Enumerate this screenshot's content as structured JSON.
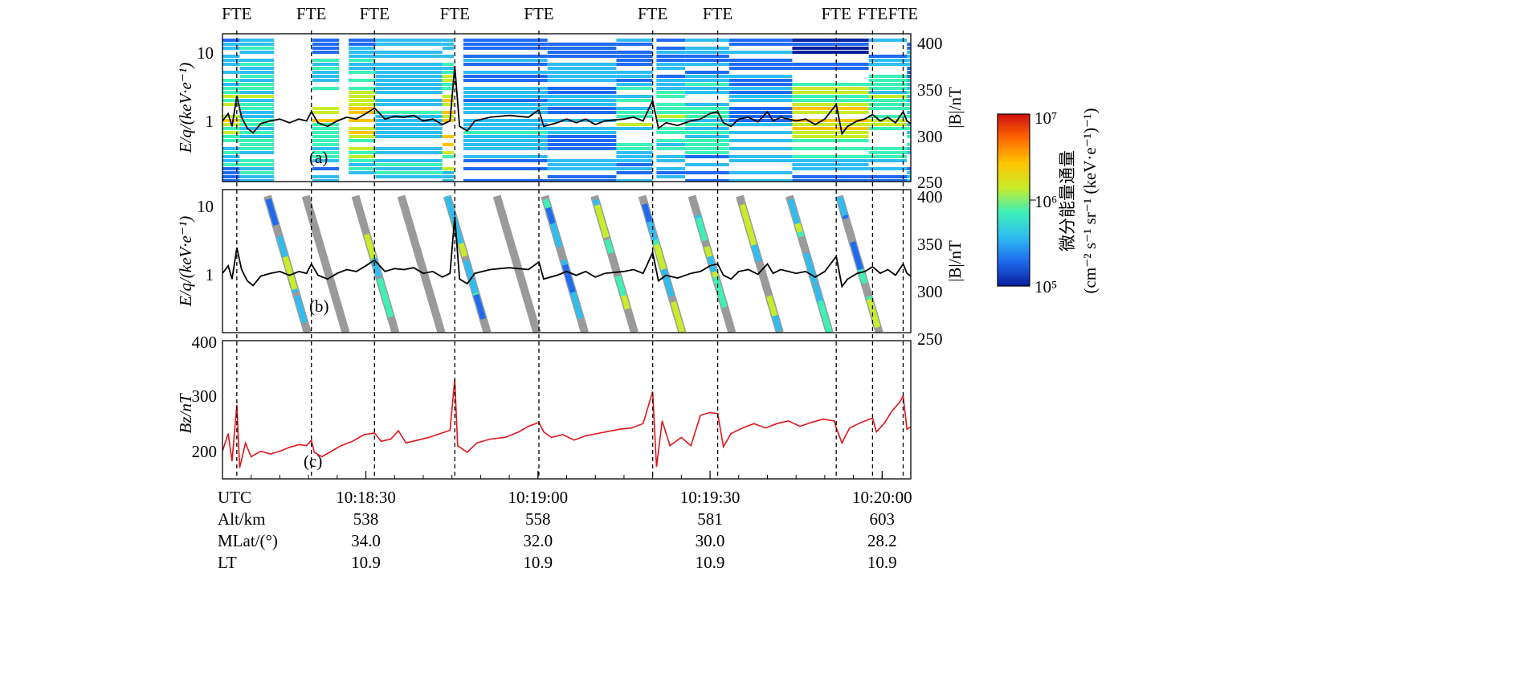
{
  "fte_label": "FTE",
  "fte_times": [
    7.5,
    46.5,
    79.5,
    121.5,
    165.5,
    225,
    259,
    321,
    340,
    356
  ],
  "time_range_s": [
    0,
    360
  ],
  "time_axis": {
    "ticks": [
      {
        "t": 75,
        "label": "10:18:30"
      },
      {
        "t": 165,
        "label": "10:19:00"
      },
      {
        "t": 255,
        "label": "10:19:30"
      },
      {
        "t": 345,
        "label": "10:20:00"
      }
    ],
    "rows": [
      {
        "name": "UTC",
        "values": [
          "10:18:30",
          "10:19:00",
          "10:19:30",
          "10:20:00"
        ]
      },
      {
        "name": "Alt/km",
        "values": [
          "538",
          "558",
          "581",
          "603"
        ]
      },
      {
        "name": "MLat/(°)",
        "values": [
          "34.0",
          "32.0",
          "30.0",
          "28.2"
        ]
      },
      {
        "name": "LT",
        "values": [
          "10.9",
          "10.9",
          "10.9",
          "10.9"
        ]
      }
    ]
  },
  "panels": {
    "a": {
      "tag": "(a)",
      "ylabel_left": "E/q/(keV·e⁻¹)",
      "ylabel_right": "|B|/nT",
      "left_ticks": [
        "10",
        "1"
      ],
      "right_ticks": [
        "400",
        "350",
        "300",
        "250"
      ]
    },
    "b": {
      "tag": "(b)",
      "ylabel_left": "E/q/(keV·e⁻¹)",
      "ylabel_right": "|B|/nT",
      "left_ticks": [
        "10",
        "1"
      ],
      "right_ticks": [
        "400",
        "350",
        "300",
        "250"
      ]
    },
    "c": {
      "tag": "(c)",
      "ylabel_left": "Bz/nT",
      "left_ticks": [
        "400",
        "300",
        "200"
      ]
    }
  },
  "colorbar": {
    "label_line1": "微分能量通量",
    "label_line2": "(cm⁻² s⁻¹ sr⁻¹ (keV·e⁻¹)⁻¹)",
    "tick_labels": [
      "10⁷",
      "10⁶",
      "10⁵"
    ],
    "colors": [
      "#0a1e9c",
      "#1f6bf0",
      "#2fbdf0",
      "#3ef0b8",
      "#c8ec2a",
      "#ffc400",
      "#ff6a00",
      "#d01010"
    ]
  },
  "colors": {
    "B_total": "#000000",
    "Bz": "#e0141b",
    "sweep_gray": "#9a9a9a"
  },
  "chart_data": {
    "type": "line",
    "x_unit": "seconds after 10:17:55 UTC",
    "xlim": [
      0,
      360
    ],
    "series": [
      {
        "name": "|B|",
        "y_range": [
          250,
          400
        ],
        "points": [
          [
            0,
            318
          ],
          [
            3,
            326
          ],
          [
            5,
            312
          ],
          [
            7.5,
            345
          ],
          [
            10,
            322
          ],
          [
            13,
            310
          ],
          [
            16,
            305
          ],
          [
            20,
            315
          ],
          [
            25,
            318
          ],
          [
            30,
            320
          ],
          [
            35,
            316
          ],
          [
            40,
            320
          ],
          [
            44,
            318
          ],
          [
            46.5,
            328
          ],
          [
            50,
            316
          ],
          [
            55,
            312
          ],
          [
            60,
            318
          ],
          [
            65,
            322
          ],
          [
            70,
            320
          ],
          [
            75,
            326
          ],
          [
            79.5,
            332
          ],
          [
            85,
            320
          ],
          [
            90,
            323
          ],
          [
            95,
            322
          ],
          [
            100,
            324
          ],
          [
            105,
            318
          ],
          [
            110,
            320
          ],
          [
            115,
            314
          ],
          [
            119,
            318
          ],
          [
            121.5,
            378
          ],
          [
            124,
            312
          ],
          [
            128,
            307
          ],
          [
            132,
            318
          ],
          [
            140,
            322
          ],
          [
            150,
            324
          ],
          [
            160,
            322
          ],
          [
            165.5,
            330
          ],
          [
            168,
            312
          ],
          [
            175,
            316
          ],
          [
            180,
            320
          ],
          [
            185,
            316
          ],
          [
            190,
            320
          ],
          [
            195,
            314
          ],
          [
            200,
            318
          ],
          [
            210,
            320
          ],
          [
            215,
            322
          ],
          [
            220,
            318
          ],
          [
            225,
            340
          ],
          [
            228,
            310
          ],
          [
            232,
            316
          ],
          [
            238,
            313
          ],
          [
            245,
            318
          ],
          [
            250,
            320
          ],
          [
            255,
            326
          ],
          [
            259,
            328
          ],
          [
            262,
            316
          ],
          [
            266,
            312
          ],
          [
            270,
            320
          ],
          [
            275,
            322
          ],
          [
            280,
            317
          ],
          [
            285,
            328
          ],
          [
            288,
            318
          ],
          [
            292,
            322
          ],
          [
            300,
            318
          ],
          [
            305,
            320
          ],
          [
            310,
            314
          ],
          [
            315,
            320
          ],
          [
            321,
            336
          ],
          [
            324,
            304
          ],
          [
            327,
            312
          ],
          [
            332,
            318
          ],
          [
            336,
            320
          ],
          [
            340,
            325
          ],
          [
            344,
            318
          ],
          [
            348,
            322
          ],
          [
            352,
            316
          ],
          [
            356,
            328
          ],
          [
            358,
            318
          ],
          [
            360,
            315
          ]
        ]
      },
      {
        "name": "Bz",
        "y_range": [
          150,
          400
        ],
        "points": [
          [
            0,
            200
          ],
          [
            3,
            232
          ],
          [
            5,
            182
          ],
          [
            7.5,
            284
          ],
          [
            9,
            170
          ],
          [
            12,
            215
          ],
          [
            15,
            190
          ],
          [
            20,
            200
          ],
          [
            25,
            195
          ],
          [
            30,
            200
          ],
          [
            35,
            207
          ],
          [
            40,
            212
          ],
          [
            44,
            210
          ],
          [
            46.5,
            220
          ],
          [
            48,
            198
          ],
          [
            52,
            190
          ],
          [
            56,
            198
          ],
          [
            62,
            210
          ],
          [
            68,
            218
          ],
          [
            74,
            230
          ],
          [
            79.5,
            233
          ],
          [
            83,
            218
          ],
          [
            88,
            222
          ],
          [
            92,
            237
          ],
          [
            96,
            215
          ],
          [
            102,
            220
          ],
          [
            108,
            225
          ],
          [
            114,
            232
          ],
          [
            119,
            238
          ],
          [
            121.5,
            330
          ],
          [
            123,
            210
          ],
          [
            128,
            198
          ],
          [
            133,
            215
          ],
          [
            140,
            222
          ],
          [
            148,
            225
          ],
          [
            155,
            235
          ],
          [
            160,
            245
          ],
          [
            165.5,
            252
          ],
          [
            168,
            235
          ],
          [
            172,
            225
          ],
          [
            178,
            230
          ],
          [
            184,
            220
          ],
          [
            190,
            228
          ],
          [
            196,
            232
          ],
          [
            202,
            236
          ],
          [
            208,
            240
          ],
          [
            214,
            242
          ],
          [
            220,
            250
          ],
          [
            225,
            308
          ],
          [
            227,
            172
          ],
          [
            230,
            255
          ],
          [
            234,
            210
          ],
          [
            240,
            225
          ],
          [
            245,
            210
          ],
          [
            250,
            265
          ],
          [
            255,
            270
          ],
          [
            259,
            268
          ],
          [
            262,
            208
          ],
          [
            266,
            232
          ],
          [
            272,
            242
          ],
          [
            278,
            250
          ],
          [
            284,
            242
          ],
          [
            290,
            250
          ],
          [
            296,
            255
          ],
          [
            302,
            245
          ],
          [
            308,
            252
          ],
          [
            314,
            258
          ],
          [
            320,
            255
          ],
          [
            321,
            242
          ],
          [
            324,
            215
          ],
          [
            328,
            242
          ],
          [
            334,
            252
          ],
          [
            340,
            260
          ],
          [
            342,
            235
          ],
          [
            346,
            250
          ],
          [
            350,
            272
          ],
          [
            354,
            288
          ],
          [
            356,
            300
          ],
          [
            358,
            240
          ],
          [
            360,
            244
          ]
        ]
      }
    ]
  }
}
